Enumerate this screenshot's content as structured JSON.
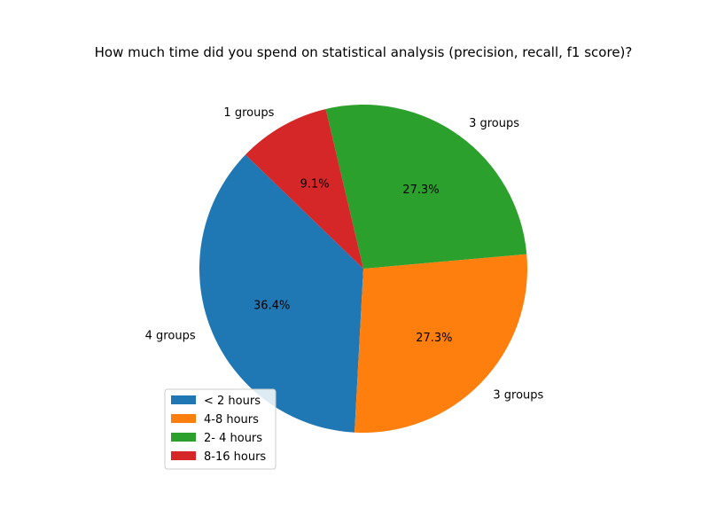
{
  "chart_data": {
    "type": "pie",
    "title": "How much time did you spend on statistical analysis (precision, recall, f1 score)?",
    "slices": [
      {
        "legend": "< 2 hours",
        "label": "4 groups",
        "value": 4,
        "percent_label": "36.4%",
        "color": "#1f77b4"
      },
      {
        "legend": "4-8 hours",
        "label": "3 groups",
        "value": 3,
        "percent_label": "27.3%",
        "color": "#ff7f0e"
      },
      {
        "legend": "2- 4 hours",
        "label": "3 groups",
        "value": 3,
        "percent_label": "27.3%",
        "color": "#2ca02c"
      },
      {
        "legend": "8-16 hours",
        "label": "1 groups",
        "value": 1,
        "percent_label": "9.1%",
        "color": "#d62728"
      }
    ],
    "start_angle_deg": 136,
    "direction": "counterclockwise",
    "legend_position": "lower-left"
  }
}
